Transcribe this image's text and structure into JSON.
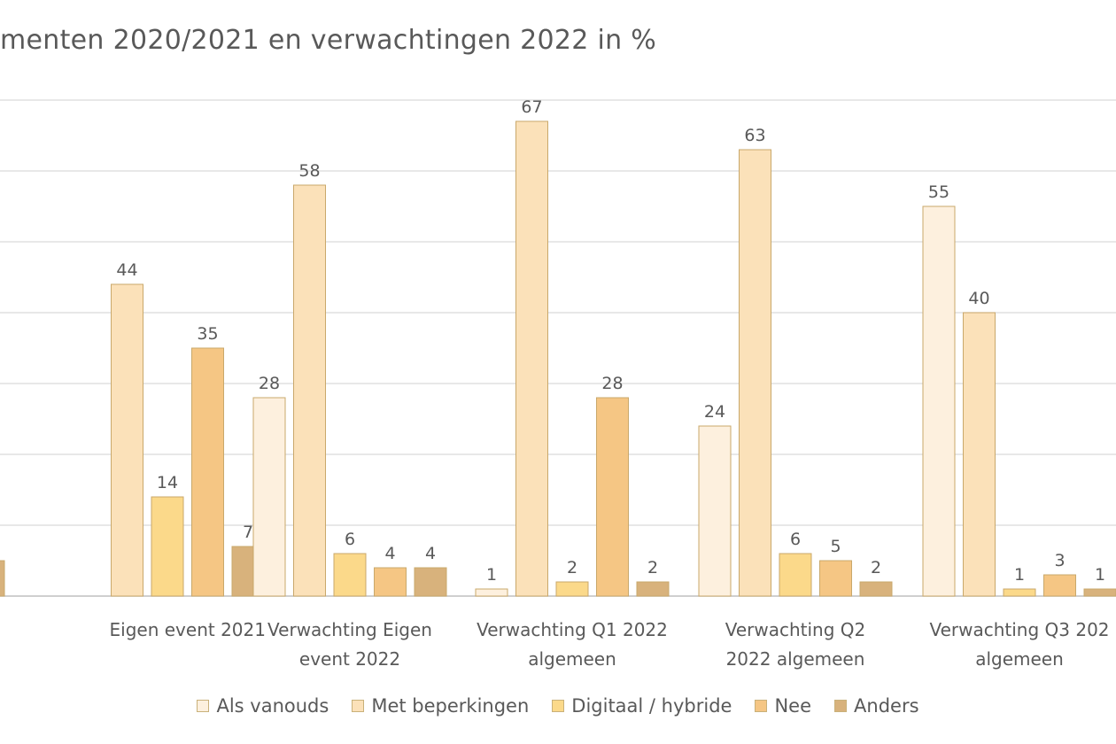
{
  "title": "menten  2020/2021 en verwachtingen  2022 in %",
  "chart_data": {
    "type": "bar",
    "categories": [
      [
        "Eigen event 2021"
      ],
      [
        "Verwachting Eigen",
        "event 2022"
      ],
      [
        "Verwachting Q1 2022",
        "algemeen"
      ],
      [
        "Verwachting Q2",
        "2022 algemeen"
      ],
      [
        "Verwachting Q3 202",
        "algemeen"
      ]
    ],
    "series": [
      {
        "name": "Als vanouds",
        "color": "#fdf0de",
        "values": [
          null,
          28,
          1,
          24,
          55
        ]
      },
      {
        "name": "Met beperkingen",
        "color": "#fbe1b9",
        "values": [
          44,
          58,
          67,
          63,
          40
        ]
      },
      {
        "name": "Digitaal / hybride",
        "color": "#fbd98a",
        "values": [
          14,
          6,
          2,
          6,
          1
        ]
      },
      {
        "name": "Nee",
        "color": "#f5c684",
        "values": [
          35,
          4,
          28,
          5,
          3
        ]
      },
      {
        "name": "Anders",
        "color": "#d8b27c",
        "values": [
          7,
          4,
          2,
          2,
          1
        ]
      }
    ],
    "cut_bar": {
      "series": "Anders",
      "value": 5
    },
    "ylim": [
      0,
      70
    ],
    "ytick_step": 10,
    "grid": true,
    "legend": "bottom"
  }
}
